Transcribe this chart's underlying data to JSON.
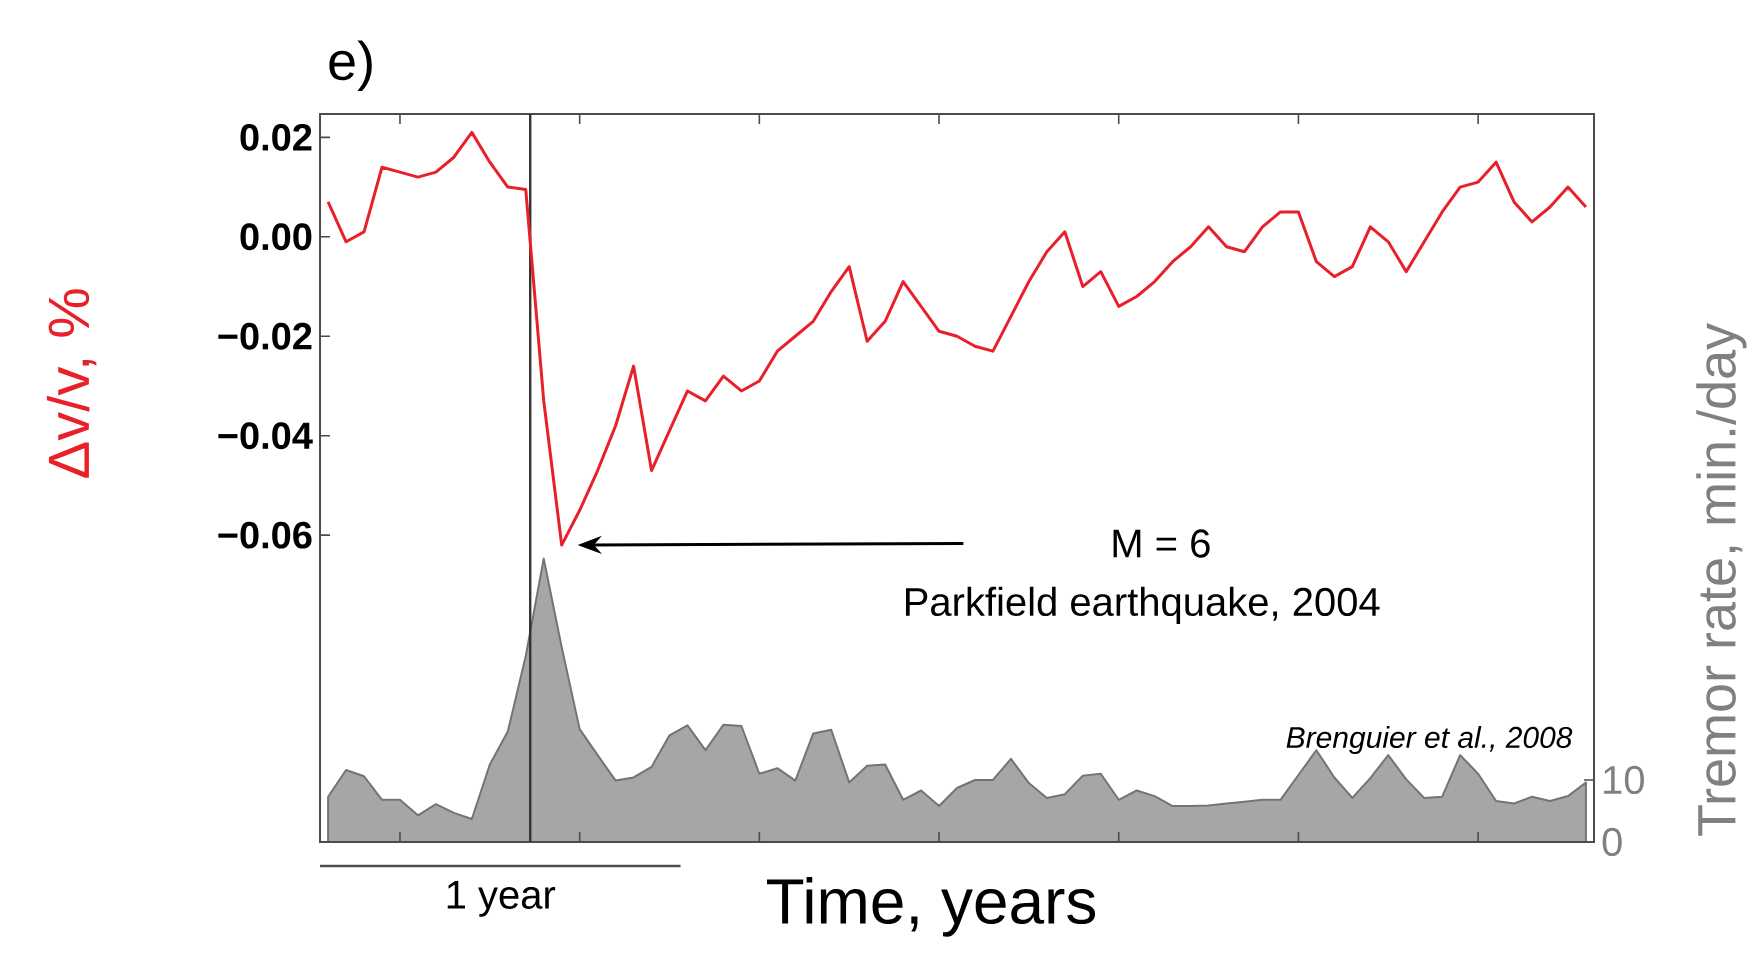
{
  "chart_data": [
    {
      "type": "line",
      "title": "e)",
      "xlabel": "Time, years",
      "ylabel": "Δv/v, %",
      "tick_labels": "y",
      "categories": [
        null,
        null,
        null,
        null,
        null,
        null,
        null,
        null,
        null,
        null,
        null,
        null,
        null,
        null,
        null,
        null,
        null,
        null,
        null,
        null,
        null,
        null,
        null,
        null,
        null,
        null,
        null,
        null,
        null,
        null,
        null,
        null,
        null,
        null,
        null,
        null,
        null,
        null,
        null,
        null,
        null,
        null,
        null,
        null,
        null,
        null,
        null,
        null,
        null,
        null,
        null,
        null,
        null,
        null,
        null,
        null,
        null,
        null,
        null,
        null,
        null,
        null,
        null,
        null,
        null,
        null,
        null,
        null,
        null,
        null,
        null
      ],
      "ylim": [
        -0.1217,
        0.0247
      ],
      "yticks": [
        {
          "value": 0.02,
          "label": "0.02"
        },
        {
          "value": 0,
          "label": "0.00"
        },
        {
          "value": -0.02,
          "label": "−0.02"
        },
        {
          "value": -0.04,
          "label": "−0.04"
        },
        {
          "value": -0.06,
          "label": "−0.06"
        }
      ],
      "series": [
        {
          "color": "#e8202a",
          "values": [
            0.007,
            -0.001,
            0.001,
            0.014,
            0.013,
            0.012,
            0.013,
            0.016,
            0.021,
            0.015,
            0.01,
            0.0095,
            -0.033,
            -0.062,
            -0.055,
            -0.047,
            -0.038,
            -0.026,
            -0.047,
            -0.039,
            -0.031,
            -0.033,
            -0.028,
            -0.031,
            -0.029,
            -0.023,
            -0.02,
            -0.017,
            -0.011,
            -0.006,
            -0.021,
            -0.017,
            -0.009,
            -0.014,
            -0.019,
            -0.02,
            -0.022,
            -0.023,
            -0.016,
            -0.009,
            -0.003,
            0.001,
            -0.01,
            -0.007,
            -0.014,
            -0.012,
            -0.009,
            -0.005,
            -0.002,
            0.002,
            -0.002,
            -0.003,
            0.002,
            0.005,
            0.005,
            -0.005,
            -0.008,
            -0.006,
            0.002,
            -0.001,
            -0.007,
            -0.001,
            0.005,
            0.01,
            0.011,
            0.015,
            0.007,
            0.003,
            0.006,
            0.01,
            0.006
          ]
        }
      ],
      "annotations": [
        "M = 6",
        "Parkfield earthquake, 2004",
        "Brenguier et al., 2008",
        "1 year"
      ]
    },
    {
      "type": "area",
      "ylabel": "Tremor rate, min./day",
      "tick_labels": "y",
      "categories": [
        null,
        null,
        null,
        null,
        null,
        null,
        null,
        null,
        null,
        null,
        null,
        null,
        null,
        null,
        null,
        null,
        null,
        null,
        null,
        null,
        null,
        null,
        null,
        null,
        null,
        null,
        null,
        null,
        null,
        null,
        null,
        null,
        null,
        null,
        null,
        null,
        null,
        null,
        null,
        null,
        null,
        null,
        null,
        null,
        null,
        null,
        null,
        null,
        null,
        null,
        null,
        null,
        null,
        null,
        null,
        null,
        null,
        null,
        null,
        null,
        null,
        null,
        null,
        null,
        null,
        null,
        null,
        null,
        null,
        null,
        null
      ],
      "ylim": [
        0,
        117.4
      ],
      "yticks": [
        0,
        10
      ],
      "series": [
        {
          "color": "#a6a6a6",
          "values": [
            7.3,
            11.6,
            10.6,
            6.8,
            6.8,
            4.3,
            6.1,
            4.7,
            3.7,
            12.5,
            17.8,
            30,
            45.7,
            31.4,
            18.2,
            14,
            9.9,
            10.4,
            12.1,
            17.2,
            18.8,
            14.8,
            18.9,
            18.7,
            11,
            11.9,
            9.9,
            17.5,
            18.1,
            9.6,
            12.3,
            12.5,
            6.8,
            8.3,
            5.8,
            8.7,
            10,
            10,
            13.4,
            9.5,
            7.1,
            7.7,
            10.7,
            11,
            6.8,
            8.3,
            7.4,
            5.8,
            5.8,
            5.9,
            6.2,
            6.5,
            6.8,
            6.8,
            10.8,
            14.8,
            10.4,
            7.1,
            10.3,
            14,
            10.1,
            7.1,
            7.3,
            14,
            11,
            6.6,
            6.2,
            7.3,
            6.6,
            7.4,
            9.6
          ]
        }
      ]
    }
  ]
}
